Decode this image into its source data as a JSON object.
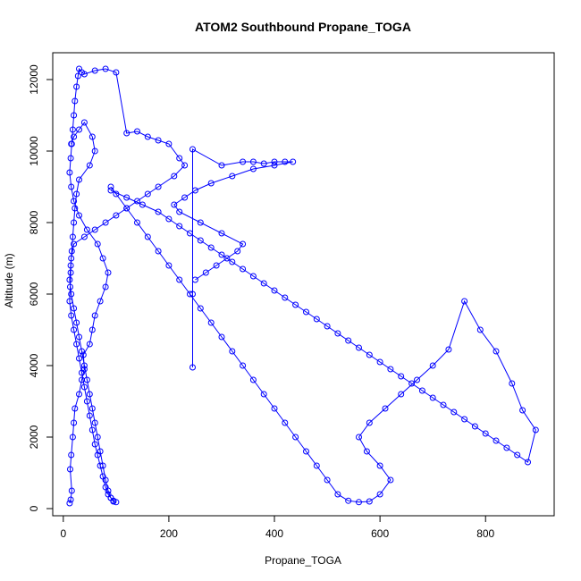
{
  "chart_data": {
    "type": "line",
    "title": "ATOM2 Southbound Propane_TOGA",
    "xlabel": "Propane_TOGA",
    "ylabel": "Altitude (m)",
    "xlim": [
      -20,
      930
    ],
    "ylim": [
      -200,
      12750
    ],
    "xticks": [
      0,
      200,
      400,
      600,
      800
    ],
    "yticks": [
      0,
      2000,
      4000,
      6000,
      8000,
      10000,
      12000
    ],
    "grid": false,
    "legend": "none",
    "marker": "open-circle",
    "color": "#0000ff",
    "series": [
      {
        "x": [
          12,
          14,
          16,
          13,
          15,
          18,
          20,
          22,
          30,
          35,
          40,
          38,
          50,
          55,
          60,
          70,
          80,
          85,
          75,
          65,
          45,
          30,
          20,
          15,
          12,
          14,
          16,
          18,
          20,
          22,
          25,
          28,
          30,
          35,
          40,
          60,
          80,
          100,
          120,
          140,
          160,
          180,
          200,
          220,
          230,
          210,
          180,
          160,
          140,
          120,
          100,
          80,
          60,
          40,
          20,
          15,
          14,
          13,
          12,
          15,
          20,
          25,
          30,
          35,
          40,
          45,
          50,
          55,
          60,
          65,
          70,
          75,
          80,
          85,
          90,
          95,
          100,
          95,
          90,
          85,
          80,
          75,
          70,
          65,
          60,
          55,
          50,
          45,
          40,
          35,
          30,
          25,
          20,
          15,
          12,
          14,
          16,
          18,
          20,
          22,
          25,
          30,
          50,
          60,
          55,
          40,
          30,
          20,
          15
        ],
        "y": [
          150,
          250,
          500,
          1100,
          1500,
          2000,
          2400,
          2800,
          3200,
          3600,
          3900,
          4300,
          4600,
          5000,
          5400,
          5800,
          6200,
          6600,
          7000,
          7400,
          7800,
          8200,
          8600,
          9000,
          9400,
          9800,
          10200,
          10600,
          11000,
          11400,
          11800,
          12100,
          12300,
          12200,
          12150,
          12250,
          12300,
          12200,
          10500,
          10550,
          10400,
          10300,
          10200,
          9800,
          9600,
          9300,
          9000,
          8800,
          8600,
          8400,
          8200,
          8000,
          7800,
          7600,
          7400,
          7000,
          6600,
          6200,
          5800,
          5400,
          5000,
          4600,
          4200,
          3800,
          3400,
          3000,
          2600,
          2200,
          1800,
          1500,
          1200,
          900,
          600,
          400,
          300,
          200,
          180,
          220,
          300,
          500,
          800,
          1200,
          1600,
          2000,
          2400,
          2800,
          3200,
          3600,
          4000,
          4400,
          4800,
          5200,
          5600,
          6000,
          6400,
          6800,
          7200,
          7600,
          8000,
          8400,
          8800,
          9200,
          9600,
          10000,
          10400,
          10800,
          10600,
          10400,
          10200
        ]
      },
      {
        "x": [
          90,
          120,
          150,
          180,
          200,
          220,
          240,
          260,
          280,
          300,
          320,
          340,
          360,
          380,
          400,
          420,
          440,
          460,
          480,
          500,
          520,
          540,
          560,
          580,
          600,
          620,
          640,
          660,
          680,
          700,
          720,
          740,
          760,
          780,
          800,
          820,
          840,
          860,
          880,
          895,
          870,
          850,
          820,
          790,
          760,
          730,
          700,
          670,
          640,
          610,
          580,
          560,
          575,
          600,
          620,
          600,
          580,
          560,
          540,
          520,
          500,
          480,
          460,
          440,
          420,
          400,
          380,
          360,
          340,
          320,
          300,
          280,
          260,
          240,
          220,
          200,
          180,
          160,
          140,
          120,
          100,
          90
        ],
        "y": [
          8900,
          8700,
          8500,
          8300,
          8100,
          7900,
          7700,
          7500,
          7300,
          7100,
          6900,
          6700,
          6500,
          6300,
          6100,
          5900,
          5700,
          5500,
          5300,
          5100,
          4900,
          4700,
          4500,
          4300,
          4100,
          3900,
          3700,
          3500,
          3300,
          3100,
          2900,
          2700,
          2500,
          2300,
          2100,
          1900,
          1700,
          1500,
          1300,
          2200,
          2750,
          3500,
          4400,
          5000,
          5800,
          4450,
          4000,
          3600,
          3200,
          2800,
          2400,
          2000,
          1600,
          1200,
          800,
          400,
          200,
          180,
          220,
          400,
          800,
          1200,
          1600,
          2000,
          2400,
          2800,
          3200,
          3600,
          4000,
          4400,
          4800,
          5200,
          5600,
          6000,
          6400,
          6800,
          7200,
          7600,
          8000,
          8400,
          8800,
          9000
        ]
      },
      {
        "x": [
          245,
          245,
          245,
          300,
          340,
          360,
          380,
          400,
          420,
          435,
          400,
          360,
          320,
          280,
          250,
          230,
          210,
          220,
          260,
          300,
          340,
          330,
          310,
          290,
          270,
          250
        ],
        "y": [
          3950,
          6000,
          10050,
          9600,
          9700,
          9700,
          9650,
          9700,
          9700,
          9700,
          9600,
          9500,
          9300,
          9100,
          8900,
          8700,
          8500,
          8300,
          8000,
          7700,
          7400,
          7200,
          7000,
          6800,
          6600,
          6400
        ]
      }
    ]
  }
}
